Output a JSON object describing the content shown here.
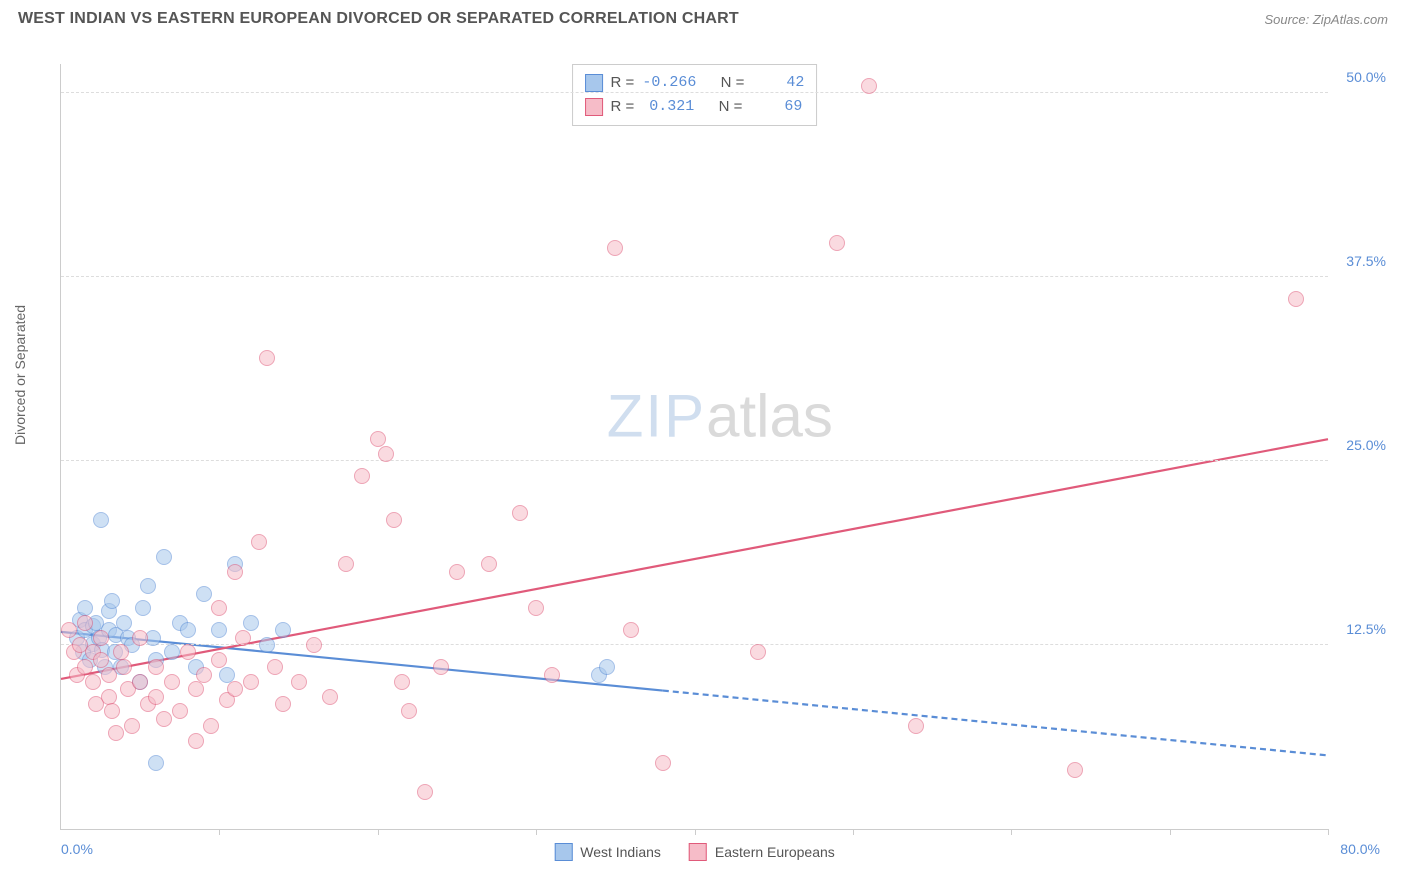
{
  "header": {
    "title": "WEST INDIAN VS EASTERN EUROPEAN DIVORCED OR SEPARATED CORRELATION CHART",
    "source": "Source: ZipAtlas.com"
  },
  "chart": {
    "type": "scatter",
    "ylabel": "Divorced or Separated",
    "xlim": [
      0,
      80
    ],
    "ylim": [
      0,
      52
    ],
    "x_axis_label_left": "0.0%",
    "x_axis_label_right": "80.0%",
    "xticks": [
      10,
      20,
      30,
      40,
      50,
      60,
      70,
      80
    ],
    "y_gridlines": [
      {
        "value": 12.5,
        "label": "12.5%"
      },
      {
        "value": 25.0,
        "label": "25.0%"
      },
      {
        "value": 37.5,
        "label": "37.5%"
      },
      {
        "value": 50.0,
        "label": "50.0%"
      }
    ],
    "background_color": "#ffffff",
    "grid_color": "#dddddd",
    "axis_color": "#cccccc",
    "tick_label_color": "#5a8dd6",
    "text_color": "#666666",
    "marker_radius": 8,
    "marker_opacity": 0.55,
    "series": [
      {
        "name": "West Indians",
        "color_fill": "#a7c7ec",
        "color_stroke": "#5a8dd6",
        "R": "-0.266",
        "N": "42",
        "trend": {
          "y_at_x0": 13.4,
          "y_at_xmax": 5.0,
          "solid_until_x": 38,
          "dash_after": true,
          "stroke_width": 2.2
        },
        "points": [
          [
            1.0,
            13.0
          ],
          [
            1.2,
            14.2
          ],
          [
            1.4,
            12.0
          ],
          [
            1.5,
            13.5
          ],
          [
            1.5,
            15.0
          ],
          [
            1.8,
            11.5
          ],
          [
            2.0,
            13.8
          ],
          [
            2.0,
            12.6
          ],
          [
            2.2,
            14.0
          ],
          [
            2.4,
            13.0
          ],
          [
            2.5,
            21.0
          ],
          [
            2.6,
            12.2
          ],
          [
            2.8,
            11.0
          ],
          [
            3.0,
            14.8
          ],
          [
            3.0,
            13.5
          ],
          [
            3.2,
            15.5
          ],
          [
            3.4,
            12.0
          ],
          [
            3.5,
            13.2
          ],
          [
            3.8,
            11.0
          ],
          [
            4.0,
            14.0
          ],
          [
            4.2,
            13.0
          ],
          [
            4.5,
            12.5
          ],
          [
            5.0,
            10.0
          ],
          [
            5.2,
            15.0
          ],
          [
            5.5,
            16.5
          ],
          [
            5.8,
            13.0
          ],
          [
            6.0,
            11.5
          ],
          [
            6.5,
            18.5
          ],
          [
            7.0,
            12.0
          ],
          [
            7.5,
            14.0
          ],
          [
            8.0,
            13.5
          ],
          [
            8.5,
            11.0
          ],
          [
            9.0,
            16.0
          ],
          [
            10.0,
            13.5
          ],
          [
            10.5,
            10.5
          ],
          [
            11.0,
            18.0
          ],
          [
            12.0,
            14.0
          ],
          [
            13.0,
            12.5
          ],
          [
            14.0,
            13.5
          ],
          [
            6.0,
            4.5
          ],
          [
            34.0,
            10.5
          ],
          [
            34.5,
            11.0
          ]
        ]
      },
      {
        "name": "Eastern Europeans",
        "color_fill": "#f6bcc8",
        "color_stroke": "#e05a7a",
        "R": "0.321",
        "N": "69",
        "trend": {
          "y_at_x0": 10.2,
          "y_at_xmax": 26.5,
          "solid_until_x": 80,
          "dash_after": false,
          "stroke_width": 2.2
        },
        "points": [
          [
            0.5,
            13.5
          ],
          [
            0.8,
            12.0
          ],
          [
            1.0,
            10.5
          ],
          [
            1.2,
            12.5
          ],
          [
            1.5,
            11.0
          ],
          [
            1.5,
            14.0
          ],
          [
            2.0,
            12.0
          ],
          [
            2.0,
            10.0
          ],
          [
            2.2,
            8.5
          ],
          [
            2.5,
            11.5
          ],
          [
            2.5,
            13.0
          ],
          [
            3.0,
            9.0
          ],
          [
            3.0,
            10.5
          ],
          [
            3.2,
            8.0
          ],
          [
            3.5,
            6.5
          ],
          [
            3.8,
            12.0
          ],
          [
            4.0,
            11.0
          ],
          [
            4.2,
            9.5
          ],
          [
            4.5,
            7.0
          ],
          [
            5.0,
            10.0
          ],
          [
            5.0,
            13.0
          ],
          [
            5.5,
            8.5
          ],
          [
            6.0,
            11.0
          ],
          [
            6.0,
            9.0
          ],
          [
            6.5,
            7.5
          ],
          [
            7.0,
            10.0
          ],
          [
            7.5,
            8.0
          ],
          [
            8.0,
            12.0
          ],
          [
            8.5,
            9.5
          ],
          [
            8.5,
            6.0
          ],
          [
            9.0,
            10.5
          ],
          [
            9.5,
            7.0
          ],
          [
            10.0,
            11.5
          ],
          [
            10.0,
            15.0
          ],
          [
            10.5,
            8.8
          ],
          [
            11.0,
            9.5
          ],
          [
            11.0,
            17.5
          ],
          [
            11.5,
            13.0
          ],
          [
            12.0,
            10.0
          ],
          [
            12.5,
            19.5
          ],
          [
            13.0,
            32.0
          ],
          [
            13.5,
            11.0
          ],
          [
            14.0,
            8.5
          ],
          [
            15.0,
            10.0
          ],
          [
            16.0,
            12.5
          ],
          [
            17.0,
            9.0
          ],
          [
            18.0,
            18.0
          ],
          [
            19.0,
            24.0
          ],
          [
            20.0,
            26.5
          ],
          [
            20.5,
            25.5
          ],
          [
            21.0,
            21.0
          ],
          [
            21.5,
            10.0
          ],
          [
            22.0,
            8.0
          ],
          [
            23.0,
            2.5
          ],
          [
            24.0,
            11.0
          ],
          [
            25.0,
            17.5
          ],
          [
            27.0,
            18.0
          ],
          [
            29.0,
            21.5
          ],
          [
            30.0,
            15.0
          ],
          [
            31.0,
            10.5
          ],
          [
            35.0,
            39.5
          ],
          [
            36.0,
            13.5
          ],
          [
            38.0,
            4.5
          ],
          [
            44.0,
            12.0
          ],
          [
            49.0,
            39.8
          ],
          [
            51.0,
            50.5
          ],
          [
            54.0,
            7.0
          ],
          [
            64.0,
            4.0
          ],
          [
            78.0,
            36.0
          ]
        ]
      }
    ],
    "stats_legend": {
      "rows": [
        {
          "swatch_fill": "#a7c7ec",
          "swatch_stroke": "#5a8dd6",
          "r_label": "R =",
          "r_val": "-0.266",
          "n_label": "N =",
          "n_val": "42"
        },
        {
          "swatch_fill": "#f6bcc8",
          "swatch_stroke": "#e05a7a",
          "r_label": "R =",
          "r_val": "0.321",
          "n_label": "N =",
          "n_val": "69"
        }
      ]
    },
    "bottom_legend": [
      {
        "swatch_fill": "#a7c7ec",
        "swatch_stroke": "#5a8dd6",
        "label": "West Indians"
      },
      {
        "swatch_fill": "#f6bcc8",
        "swatch_stroke": "#e05a7a",
        "label": "Eastern Europeans"
      }
    ],
    "watermark": {
      "part1": "ZIP",
      "part2": "atlas"
    }
  }
}
